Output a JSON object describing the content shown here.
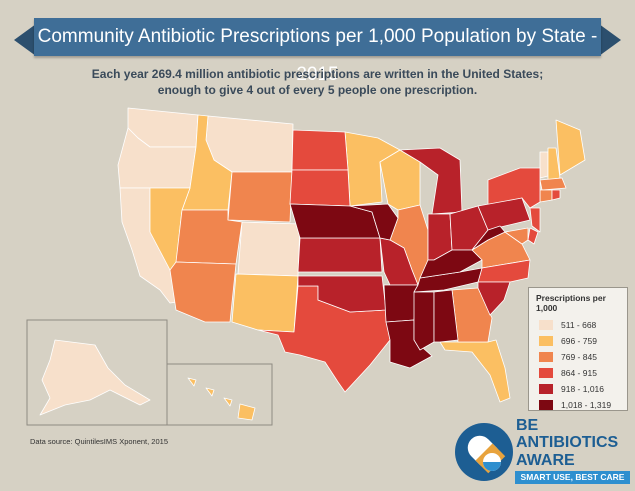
{
  "title": "Community Antibiotic Prescriptions per 1,000 Population by State - 2015",
  "subtitle": {
    "line1": "Each year 269.4 million antibiotic prescriptions are written in the United States;",
    "line2": "enough to give 4 out of every 5 people one prescription."
  },
  "legend": {
    "title": "Prescriptions per 1,000",
    "items": [
      {
        "label": "511 - 668",
        "color": "#f7e0cb"
      },
      {
        "label": "696 - 759",
        "color": "#fbbf62"
      },
      {
        "label": "769 - 845",
        "color": "#f0854e"
      },
      {
        "label": "864 - 915",
        "color": "#e44a3d"
      },
      {
        "label": "918 - 1,016",
        "color": "#b8222a"
      },
      {
        "label": "1,018 - 1,319",
        "color": "#7d0812"
      }
    ]
  },
  "state_classes": {
    "WA": 0,
    "OR": 0,
    "CA": 0,
    "MT": 0,
    "CO": 0,
    "AK": 0,
    "HI": 1,
    "VT": 0,
    "ID": 1,
    "NV": 1,
    "NM": 1,
    "MN": 1,
    "WI": 1,
    "ME": 1,
    "NH": 1,
    "FL": 1,
    "UT": 2,
    "AZ": 2,
    "WY": 2,
    "IL": 2,
    "GA": 2,
    "VA": 2,
    "MA": 2,
    "CT": 2,
    "MD": 2,
    "ND": 3,
    "SD": 3,
    "TX": 3,
    "NY": 3,
    "NC": 3,
    "NJ": 3,
    "DE": 3,
    "RI": 3,
    "KS": 4,
    "OK": 4,
    "MO": 4,
    "MI": 4,
    "IN": 4,
    "OH": 4,
    "PA": 4,
    "SC": 4,
    "NE": 5,
    "IA": 5,
    "AR": 5,
    "LA": 5,
    "MS": 5,
    "AL": 5,
    "TN": 5,
    "KY": 5,
    "WV": 5
  },
  "source": "Data source: QuintilesIMS Xponent, 2015",
  "logo": {
    "line1": "BE",
    "line2": "ANTIBIOTICS",
    "line3": "AWARE",
    "tagline": "SMART USE, BEST CARE"
  }
}
